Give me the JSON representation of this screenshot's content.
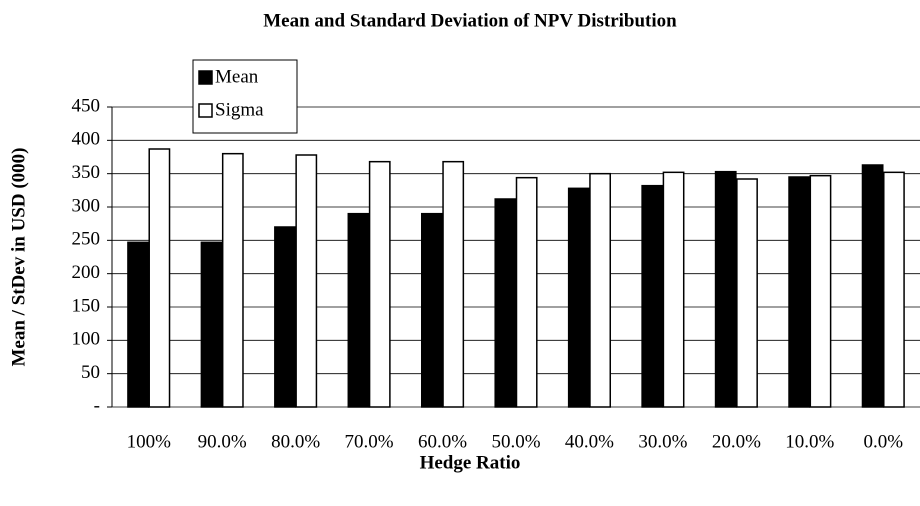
{
  "chart_data": {
    "type": "bar",
    "title": "Mean and Standard Deviation of NPV Distribution",
    "x_label": "Hedge Ratio",
    "y_label": "Mean / StDev in USD (000)",
    "categories": [
      "100%",
      "90.0%",
      "80.0%",
      "70.0%",
      "60.0%",
      "50.0%",
      "40.0%",
      "30.0%",
      "20.0%",
      "10.0%",
      "0.0%"
    ],
    "series": [
      {
        "name": "Mean",
        "color": "#000000",
        "values": [
          247,
          247,
          270,
          290,
          290,
          312,
          328,
          332,
          353,
          345,
          363
        ]
      },
      {
        "name": "Sigma",
        "color": "#ffffff",
        "values": [
          387,
          380,
          378,
          368,
          368,
          344,
          350,
          352,
          342,
          347,
          352
        ]
      }
    ],
    "ylim": [
      0,
      450
    ],
    "yticks": [
      {
        "value": 0,
        "label": "-"
      },
      50,
      100,
      150,
      200,
      250,
      300,
      350,
      400,
      450
    ],
    "grid": true,
    "legend": "top-left"
  }
}
